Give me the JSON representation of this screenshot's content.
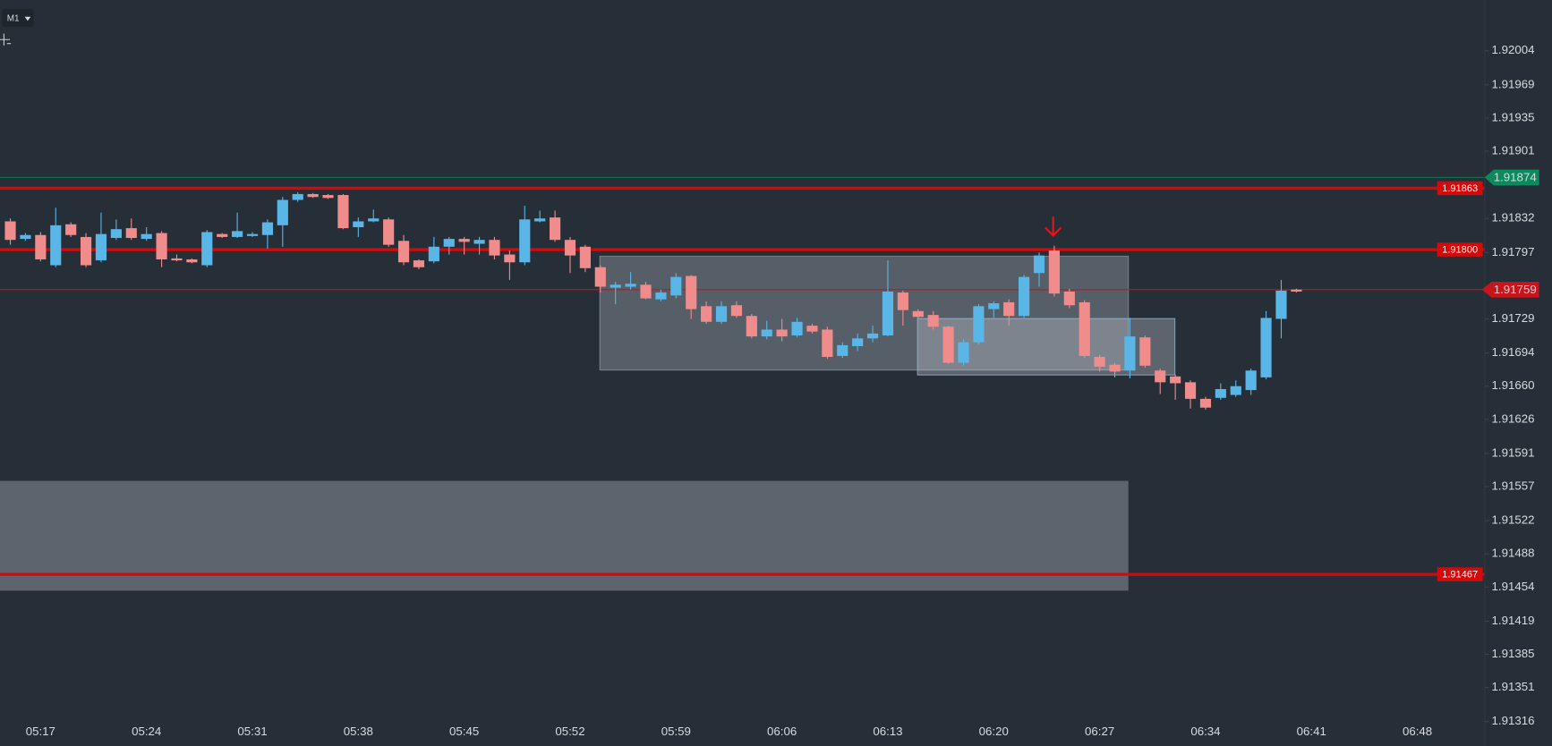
{
  "ui": {
    "timeframe": "M1"
  },
  "chart_data": {
    "type": "candlestick",
    "x": [
      "05:15",
      "05:16",
      "05:17",
      "05:18",
      "05:19",
      "05:20",
      "05:21",
      "05:22",
      "05:23",
      "05:24",
      "05:25",
      "05:26",
      "05:27",
      "05:28",
      "05:29",
      "05:30",
      "05:31",
      "05:32",
      "05:33",
      "05:34",
      "05:35",
      "05:36",
      "05:37",
      "05:38",
      "05:39",
      "05:40",
      "05:41",
      "05:42",
      "05:43",
      "05:44",
      "05:45",
      "05:46",
      "05:47",
      "05:48",
      "05:49",
      "05:50",
      "05:51",
      "05:52",
      "05:53",
      "05:54",
      "05:55",
      "05:56",
      "05:57",
      "05:58",
      "05:59",
      "06:00",
      "06:01",
      "06:02",
      "06:03",
      "06:04",
      "06:05",
      "06:06",
      "06:07",
      "06:08",
      "06:09",
      "06:10",
      "06:11",
      "06:12",
      "06:13",
      "06:14",
      "06:15",
      "06:16",
      "06:17",
      "06:18",
      "06:19",
      "06:20",
      "06:21",
      "06:22",
      "06:23",
      "06:24",
      "06:25",
      "06:26",
      "06:27",
      "06:28",
      "06:29",
      "06:30",
      "06:31",
      "06:32",
      "06:33",
      "06:34",
      "06:35",
      "06:36",
      "06:37",
      "06:38",
      "06:39",
      "06:40"
    ],
    "open": [
      1.91829,
      1.91811,
      1.91815,
      1.91784,
      1.91826,
      1.91813,
      1.91789,
      1.91812,
      1.91822,
      1.91811,
      1.91817,
      1.91791,
      1.9179,
      1.91784,
      1.91816,
      1.91813,
      1.91814,
      1.91815,
      1.91825,
      1.91851,
      1.91857,
      1.91856,
      1.91856,
      1.91823,
      1.91829,
      1.91831,
      1.91809,
      1.91789,
      1.91788,
      1.91803,
      1.91811,
      1.91806,
      1.9181,
      1.91795,
      1.91787,
      1.91829,
      1.91833,
      1.9181,
      1.91803,
      1.91782,
      1.91761,
      1.91762,
      1.91764,
      1.91749,
      1.91753,
      1.91773,
      1.91742,
      1.91726,
      1.91743,
      1.91732,
      1.91711,
      1.91718,
      1.91712,
      1.91722,
      1.91718,
      1.91691,
      1.91701,
      1.91709,
      1.91712,
      1.91756,
      1.91737,
      1.91733,
      1.91721,
      1.91684,
      1.91705,
      1.91739,
      1.91746,
      1.91732,
      1.91776,
      1.91799,
      1.91757,
      1.91746,
      1.9169,
      1.91682,
      1.91676,
      1.9171,
      1.91676,
      1.9167,
      1.91664,
      1.91647,
      1.91648,
      1.91651,
      1.91656,
      1.91669,
      1.91729,
      1.91759
    ],
    "high": [
      1.91832,
      1.91817,
      1.91818,
      1.91843,
      1.91828,
      1.91817,
      1.91838,
      1.91831,
      1.91832,
      1.91823,
      1.91819,
      1.91795,
      1.91791,
      1.9182,
      1.91817,
      1.91838,
      1.91818,
      1.91831,
      1.91854,
      1.91859,
      1.91858,
      1.91857,
      1.91857,
      1.91833,
      1.91841,
      1.91833,
      1.91815,
      1.9179,
      1.91813,
      1.91813,
      1.91813,
      1.91813,
      1.91813,
      1.91799,
      1.91845,
      1.9184,
      1.9184,
      1.91813,
      1.91805,
      1.91784,
      1.91767,
      1.91777,
      1.91767,
      1.91759,
      1.91776,
      1.91774,
      1.91747,
      1.91747,
      1.91747,
      1.91734,
      1.91727,
      1.91729,
      1.9173,
      1.91724,
      1.91721,
      1.91705,
      1.91714,
      1.91722,
      1.91789,
      1.91758,
      1.91739,
      1.91737,
      1.91722,
      1.91708,
      1.91744,
      1.91747,
      1.91749,
      1.91774,
      1.91797,
      1.91804,
      1.9176,
      1.91748,
      1.91692,
      1.91684,
      1.9173,
      1.91712,
      1.91678,
      1.91672,
      1.91666,
      1.91649,
      1.91663,
      1.91666,
      1.91678,
      1.91737,
      1.91769,
      1.9176
    ],
    "low": [
      1.91805,
      1.91809,
      1.91788,
      1.91782,
      1.91813,
      1.91782,
      1.91787,
      1.9181,
      1.9181,
      1.91809,
      1.91782,
      1.91788,
      1.91786,
      1.91782,
      1.91812,
      1.91812,
      1.91813,
      1.91801,
      1.91803,
      1.91849,
      1.91853,
      1.91852,
      1.91821,
      1.91813,
      1.91828,
      1.91803,
      1.91784,
      1.9178,
      1.91786,
      1.91795,
      1.91795,
      1.91795,
      1.9179,
      1.91769,
      1.91784,
      1.91828,
      1.91808,
      1.91776,
      1.91777,
      1.91756,
      1.91744,
      1.91759,
      1.91749,
      1.91747,
      1.9175,
      1.91729,
      1.91724,
      1.91724,
      1.9173,
      1.91709,
      1.91708,
      1.91706,
      1.9171,
      1.91714,
      1.91688,
      1.91689,
      1.91696,
      1.91705,
      1.91711,
      1.91722,
      1.91729,
      1.91718,
      1.91683,
      1.91681,
      1.91703,
      1.9173,
      1.91722,
      1.9173,
      1.91762,
      1.91752,
      1.9174,
      1.91689,
      1.91675,
      1.91669,
      1.91668,
      1.91679,
      1.91652,
      1.91646,
      1.91637,
      1.91636,
      1.91646,
      1.91649,
      1.91651,
      1.91667,
      1.91709,
      1.91756
    ],
    "close": [
      1.9181,
      1.91815,
      1.9179,
      1.91825,
      1.91815,
      1.91784,
      1.91816,
      1.91821,
      1.91812,
      1.91816,
      1.9179,
      1.91789,
      1.91787,
      1.91818,
      1.91813,
      1.91819,
      1.91816,
      1.91828,
      1.91851,
      1.91857,
      1.91854,
      1.91853,
      1.91822,
      1.91829,
      1.91832,
      1.91805,
      1.91787,
      1.91782,
      1.91803,
      1.91811,
      1.91808,
      1.9181,
      1.91794,
      1.91787,
      1.91831,
      1.91832,
      1.9181,
      1.91794,
      1.91781,
      1.91762,
      1.91764,
      1.91765,
      1.9175,
      1.91756,
      1.91772,
      1.91739,
      1.91726,
      1.91742,
      1.91732,
      1.91711,
      1.91718,
      1.91711,
      1.91726,
      1.91716,
      1.9169,
      1.91702,
      1.91709,
      1.91714,
      1.91757,
      1.91738,
      1.91731,
      1.91721,
      1.91684,
      1.91705,
      1.91742,
      1.91745,
      1.91732,
      1.91772,
      1.91794,
      1.91755,
      1.91743,
      1.91691,
      1.9168,
      1.91675,
      1.91711,
      1.91681,
      1.91664,
      1.91663,
      1.91647,
      1.91638,
      1.91657,
      1.9166,
      1.91676,
      1.9173,
      1.91758,
      1.91757
    ],
    "colors": {
      "up": "#5ab6e6",
      "down": "#f08c8c"
    },
    "ylim": [
      1.91291,
      1.92056
    ],
    "yticks": [
      1.92004,
      1.91969,
      1.91935,
      1.91901,
      1.91832,
      1.91797,
      1.91729,
      1.91694,
      {
        "value": 1.9166,
        "label": "1.91660"
      },
      1.91626,
      1.91591,
      1.91557,
      1.91522,
      1.91488,
      1.91454,
      1.91419,
      1.91385,
      1.91351,
      1.91316
    ],
    "xticks": [
      "05:17",
      "05:24",
      "05:31",
      "05:38",
      "05:45",
      "05:52",
      "05:59",
      "06:06",
      "06:13",
      "06:20",
      "06:27",
      "06:34",
      "06:41",
      "06:48"
    ],
    "levels": [
      {
        "value": 1.91863,
        "label": "1.91863",
        "color": "#d40a0a",
        "line_width": 3,
        "tag": "plot"
      },
      {
        "value": 1.918,
        "label": "1.91800",
        "color": "#d40a0a",
        "line_width": 3,
        "tag": "plot"
      },
      {
        "value": 1.91759,
        "label": "1.91759",
        "color": "#c8141a",
        "line_width": 1,
        "tag": "axis"
      },
      {
        "value": 1.91467,
        "label": "1.91467",
        "color": "#d40a0a",
        "line_width": 3,
        "tag": "plot"
      }
    ],
    "current_price": {
      "value": 1.91874,
      "label": "1.91874",
      "color": "#0b8a5e"
    }
  }
}
